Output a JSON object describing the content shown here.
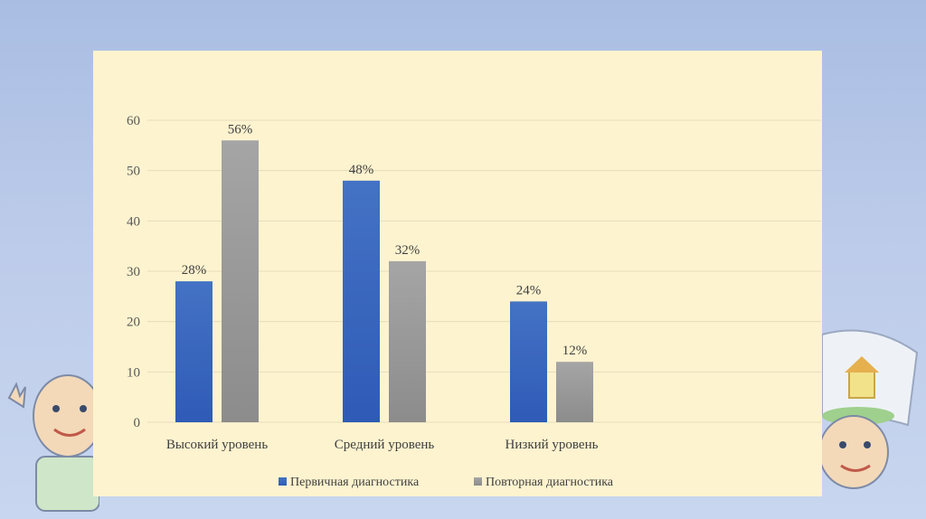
{
  "colors": {
    "series1": "#4472c4",
    "series1_dark": "#2f5bb7",
    "series2": "#a5a5a5",
    "series2_dark": "#8c8c8c",
    "grid": "#e6dcbb",
    "panel": "#fdf3cf"
  },
  "chart_data": {
    "type": "bar",
    "categories": [
      "Высокий уровень",
      "Средний уровень",
      "Низкий уровень"
    ],
    "series": [
      {
        "name": "Первичная диагностика",
        "values": [
          28,
          48,
          24
        ],
        "labels": [
          "28%",
          "48%",
          "24%"
        ]
      },
      {
        "name": "Повторная диагностика",
        "values": [
          56,
          32,
          12
        ],
        "labels": [
          "56%",
          "32%",
          "12%"
        ]
      }
    ],
    "yticks": [
      "0",
      "10",
      "20",
      "30",
      "40",
      "50",
      "60"
    ],
    "ylim": [
      0,
      60
    ],
    "grid": true,
    "legend_position": "bottom"
  }
}
